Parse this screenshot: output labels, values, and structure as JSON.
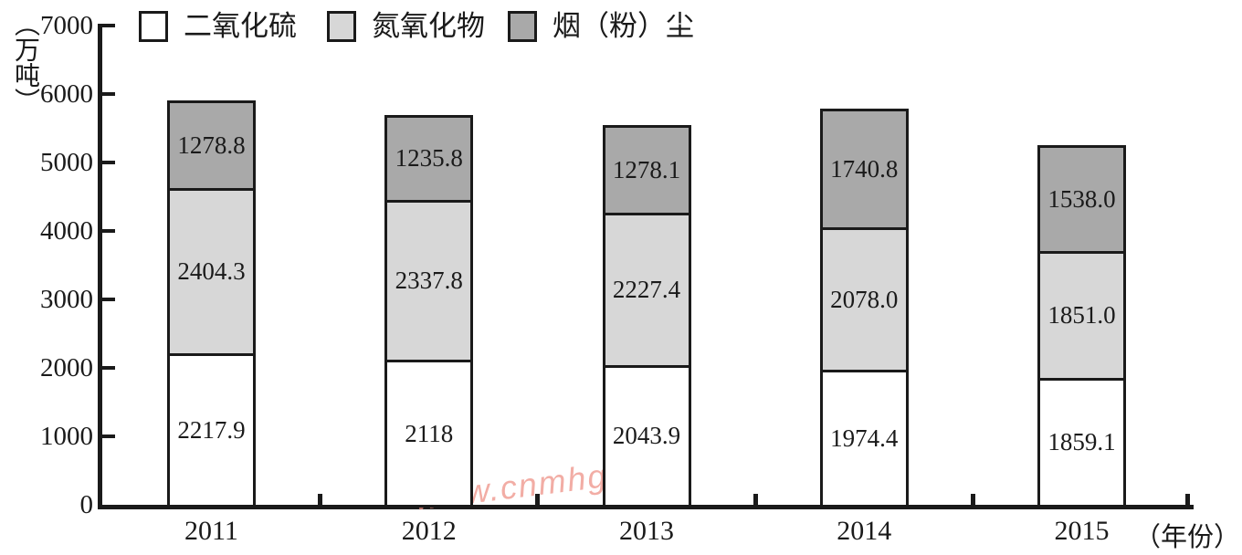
{
  "chart_data": {
    "type": "bar",
    "stacked": true,
    "title": "",
    "y_axis_unit": "（万吨）",
    "x_axis_unit": "（年份）",
    "ylim": [
      0,
      7000
    ],
    "y_ticks": [
      0,
      1000,
      2000,
      3000,
      4000,
      5000,
      6000,
      7000
    ],
    "grid": false,
    "legend_position": "top",
    "categories": [
      "2011",
      "2012",
      "2013",
      "2014",
      "2015"
    ],
    "series": [
      {
        "name": "二氧化硫",
        "color": "#ffffff",
        "values": [
          2217.9,
          2118,
          2043.9,
          1974.4,
          1859.1
        ],
        "value_labels": [
          "2217.9",
          "2118",
          "2043.9",
          "1974.4",
          "1859.1"
        ]
      },
      {
        "name": "氮氧化物",
        "color": "#d7d7d7",
        "values": [
          2404.3,
          2337.8,
          2227.4,
          2078.0,
          1851.0
        ],
        "value_labels": [
          "2404.3",
          "2337.8",
          "2227.4",
          "2078.0",
          "1851.0"
        ]
      },
      {
        "name": "烟（粉）尘",
        "color": "#a9a9a9",
        "values": [
          1278.8,
          1235.8,
          1278.1,
          1740.8,
          1538.0
        ],
        "value_labels": [
          "1278.8",
          "1235.8",
          "1278.1",
          "1740.8",
          "1538.0"
        ]
      }
    ],
    "watermark": "www.cnmhg.com",
    "colors": {
      "axis": "#1a1a1a",
      "text": "#1a1a1a",
      "watermark": "#ee8e83"
    }
  }
}
